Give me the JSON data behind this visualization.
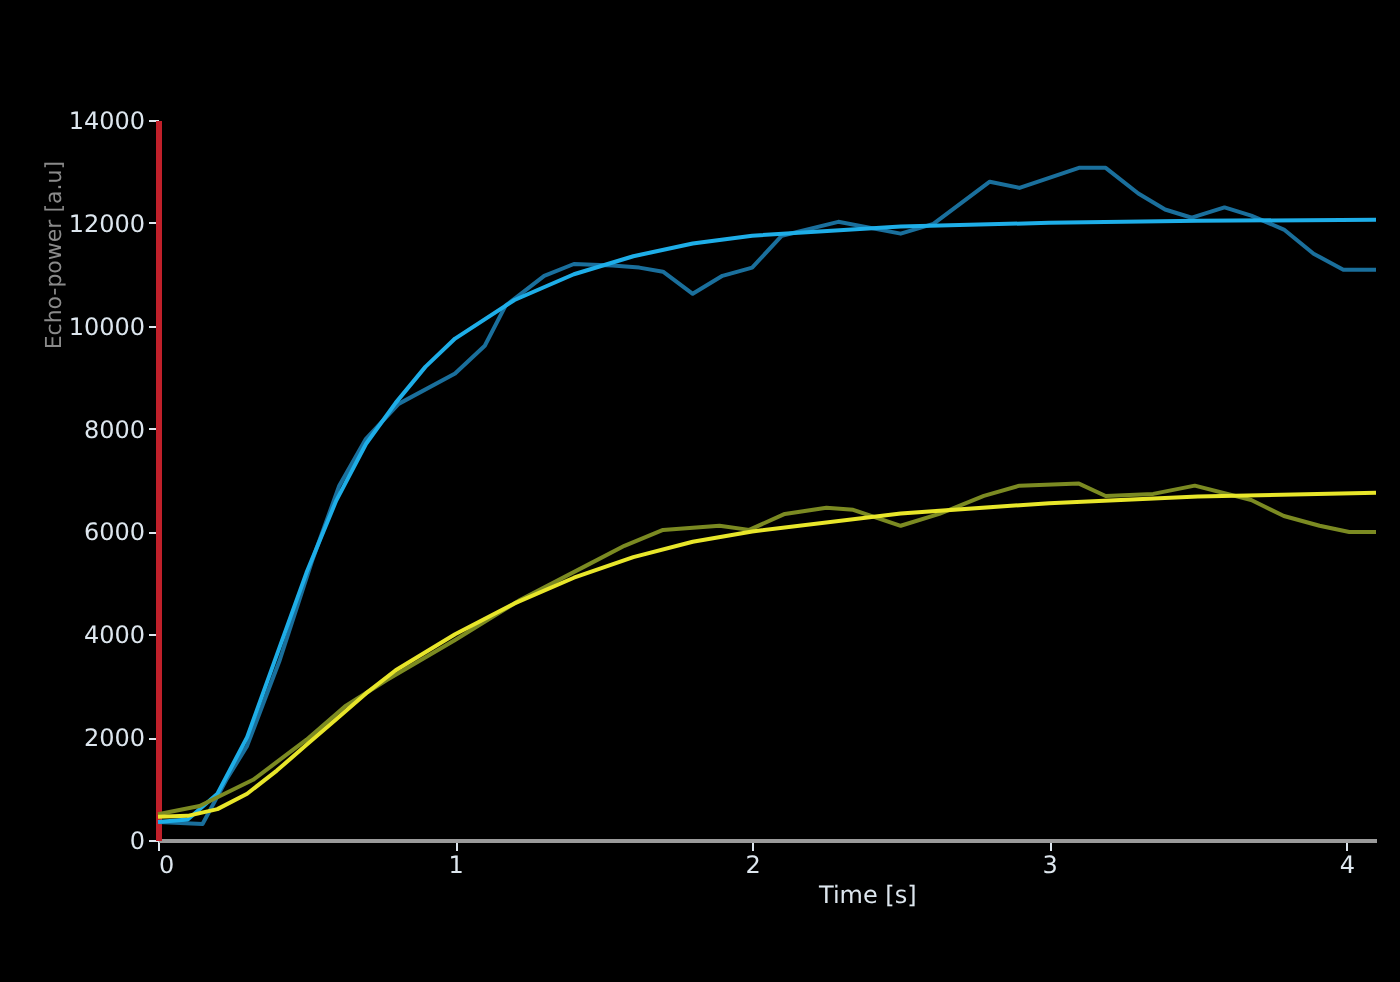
{
  "chart_data": {
    "type": "line",
    "xlabel": "Time [s]",
    "ylabel": "Echo-power [a.u]",
    "xlim": [
      0,
      4.1
    ],
    "ylim": [
      0,
      14000
    ],
    "xticks": [
      0,
      1,
      2,
      3,
      4
    ],
    "yticks": [
      0,
      2000,
      4000,
      6000,
      8000,
      10000,
      12000,
      14000
    ],
    "grid": false,
    "series": [
      {
        "color": "#1a6f9c",
        "x": [
          0,
          0.15,
          0.23,
          0.3,
          0.41,
          0.52,
          0.61,
          0.7,
          0.81,
          1.0,
          1.1,
          1.17,
          1.3,
          1.4,
          1.53,
          1.62,
          1.7,
          1.8,
          1.9,
          2.0,
          2.1,
          2.29,
          2.5,
          2.61,
          2.8,
          2.9,
          3.1,
          3.19,
          3.3,
          3.39,
          3.48,
          3.59,
          3.68,
          3.79,
          3.89,
          3.99,
          4.1
        ],
        "values": [
          350,
          310,
          1170,
          1830,
          3500,
          5450,
          6890,
          7800,
          8480,
          9070,
          9610,
          10390,
          10970,
          11200,
          11170,
          11130,
          11050,
          10620,
          10970,
          11130,
          11750,
          12020,
          11790,
          11980,
          12800,
          12680,
          13070,
          13070,
          12570,
          12260,
          12100,
          12300,
          12140,
          11870,
          11400,
          11090,
          11090
        ]
      },
      {
        "color": "#1eaee8",
        "x": [
          0,
          0.1,
          0.2,
          0.3,
          0.4,
          0.5,
          0.6,
          0.7,
          0.8,
          0.9,
          1.0,
          1.2,
          1.4,
          1.6,
          1.8,
          2.0,
          2.5,
          3.0,
          3.5,
          4.1
        ],
        "values": [
          350,
          400,
          900,
          2000,
          3600,
          5200,
          6600,
          7700,
          8500,
          9200,
          9750,
          10500,
          11000,
          11350,
          11600,
          11750,
          11930,
          12000,
          12040,
          12060
        ]
      },
      {
        "color": "#7b8a22",
        "x": [
          0,
          0.14,
          0.32,
          0.5,
          0.63,
          0.77,
          1.0,
          1.22,
          1.44,
          1.57,
          1.7,
          1.89,
          1.99,
          2.11,
          2.25,
          2.34,
          2.5,
          2.63,
          2.78,
          2.9,
          3.1,
          3.19,
          3.35,
          3.49,
          3.68,
          3.79,
          3.91,
          4.01,
          4.1
        ],
        "values": [
          500,
          660,
          1170,
          1950,
          2600,
          3110,
          3890,
          4670,
          5330,
          5720,
          6030,
          6110,
          6030,
          6340,
          6460,
          6420,
          6110,
          6340,
          6690,
          6890,
          6930,
          6690,
          6730,
          6890,
          6610,
          6300,
          6110,
          5990,
          5990
        ]
      },
      {
        "color": "#e8e62a",
        "x": [
          0,
          0.1,
          0.2,
          0.3,
          0.4,
          0.5,
          0.6,
          0.7,
          0.8,
          1.0,
          1.2,
          1.4,
          1.6,
          1.8,
          2.0,
          2.5,
          3.0,
          3.5,
          4.1
        ],
        "values": [
          450,
          470,
          600,
          900,
          1350,
          1850,
          2350,
          2850,
          3300,
          4000,
          4600,
          5100,
          5500,
          5800,
          6000,
          6350,
          6550,
          6680,
          6750
        ]
      }
    ]
  }
}
